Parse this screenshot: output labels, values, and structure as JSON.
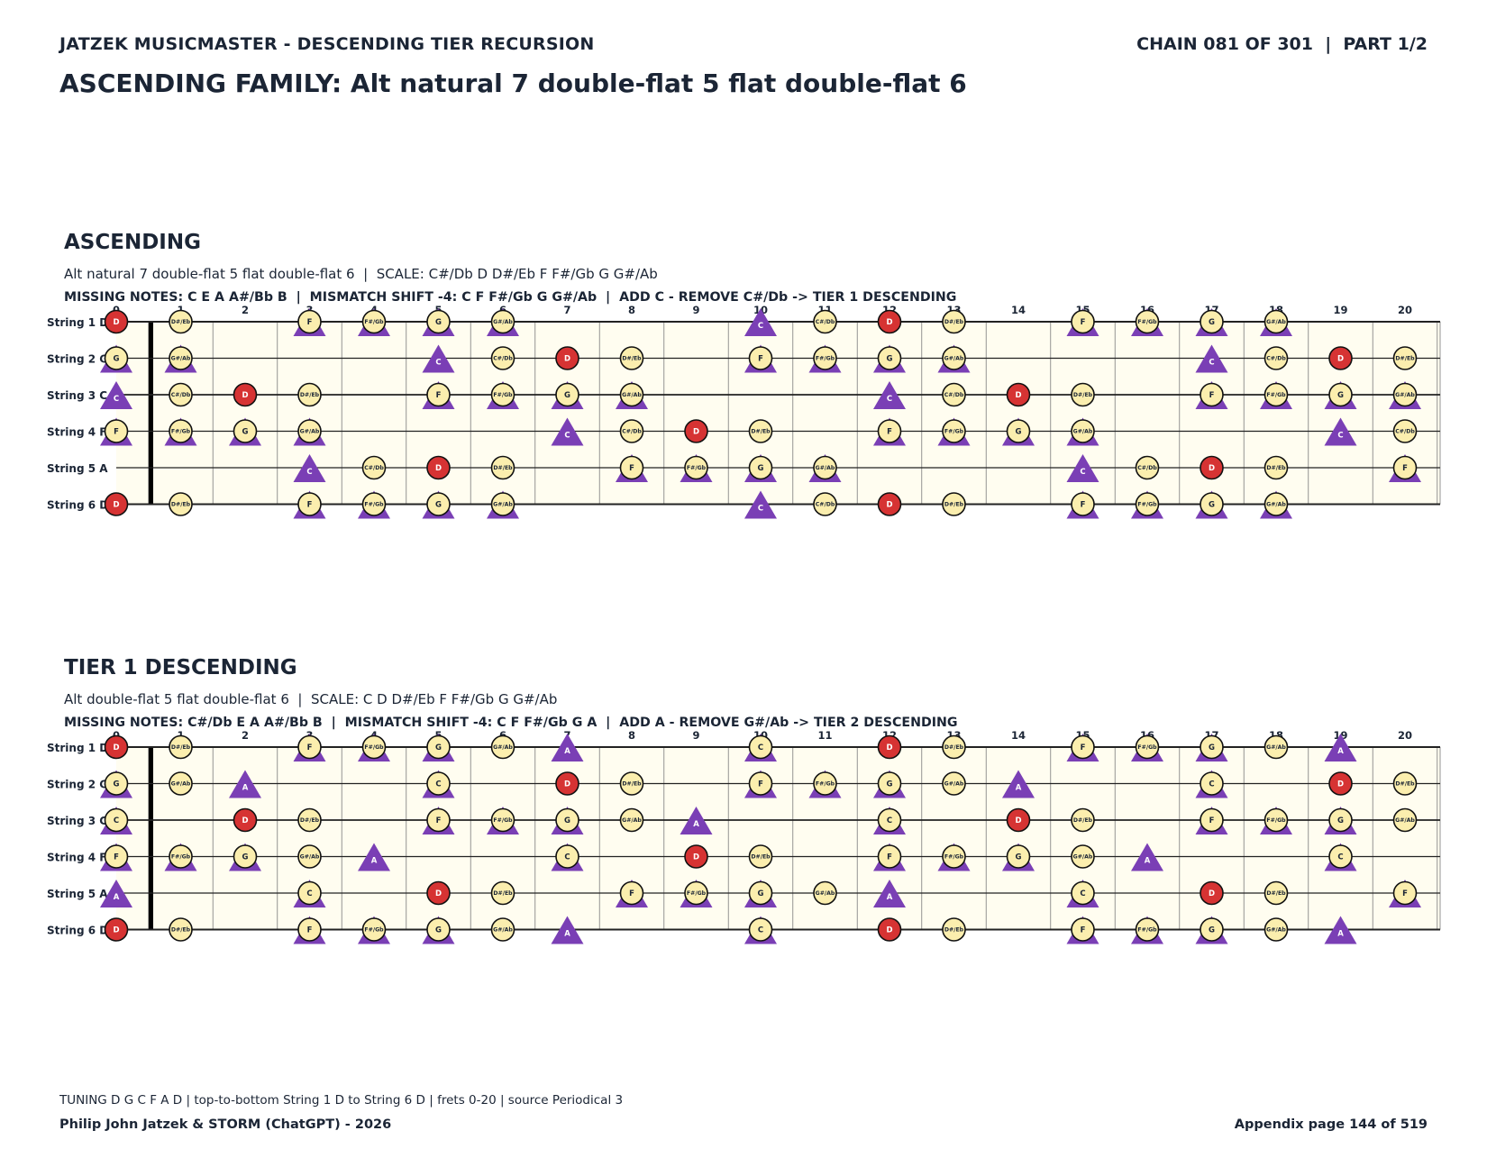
{
  "header": {
    "left": "JATZEK MUSICMASTER - DESCENDING TIER RECURSION",
    "right": "CHAIN 081 OF 301  |  PART 1/2"
  },
  "family_title": "ASCENDING FAMILY: Alt natural 7 double-flat 5 flat double-flat 6",
  "fret_numbers": [
    "0",
    "1",
    "2",
    "3",
    "4",
    "5",
    "6",
    "7",
    "8",
    "9",
    "10",
    "11",
    "12",
    "13",
    "14",
    "15",
    "16",
    "17",
    "18",
    "19",
    "20"
  ],
  "string_labels": [
    "String 1 D",
    "String 2 G",
    "String 3 C",
    "String 4 F",
    "String 5 A",
    "String 6 D"
  ],
  "tuning_open": [
    "D",
    "G",
    "C",
    "F",
    "A",
    "D"
  ],
  "chromatic": [
    "C",
    "C#/Db",
    "D",
    "D#/Eb",
    "E",
    "F",
    "F#/Gb",
    "G",
    "G#/Ab",
    "A",
    "A#/Bb",
    "B"
  ],
  "colors": {
    "root": "#d63333",
    "note": "#fbeeae",
    "triangle": "#7a3fb5",
    "board": "#fffdf0",
    "ink": "#1b2535"
  },
  "sections": [
    {
      "title": "ASCENDING",
      "description": "Alt natural 7 double-flat 5 flat double-flat 6  |  SCALE: C#/Db D D#/Eb F F#/Gb G G#/Ab",
      "missing": "MISSING NOTES: C E A A#/Bb B  |  MISMATCH SHIFT -4: C F F#/Gb G G#/Ab  |  ADD C - REMOVE C#/Db -> TIER 1 DESCENDING",
      "root": "D",
      "circle_notes": [
        "C#/Db",
        "D",
        "D#/Eb",
        "F",
        "F#/Gb",
        "G",
        "G#/Ab"
      ],
      "triangle_notes": [
        "C",
        "F",
        "F#/Gb",
        "G",
        "G#/Ab"
      ]
    },
    {
      "title": "TIER 1 DESCENDING",
      "description": "Alt double-flat 5 flat double-flat 6  |  SCALE: C D D#/Eb F F#/Gb G G#/Ab",
      "missing": "MISSING NOTES: C#/Db E A A#/Bb B  |  MISMATCH SHIFT -4: C F F#/Gb G A  |  ADD A - REMOVE G#/Ab -> TIER 2 DESCENDING",
      "root": "D",
      "circle_notes": [
        "C",
        "D",
        "D#/Eb",
        "F",
        "F#/Gb",
        "G",
        "G#/Ab"
      ],
      "triangle_notes": [
        "C",
        "F",
        "F#/Gb",
        "G",
        "A"
      ]
    }
  ],
  "footer": {
    "tuning": "TUNING D G C F A D | top-to-bottom String 1 D to String 6 D | frets 0-20 | source Periodical 3",
    "credit": "Philip John Jatzek & STORM (ChatGPT) - 2026",
    "page": "Appendix page 144 of 519"
  }
}
